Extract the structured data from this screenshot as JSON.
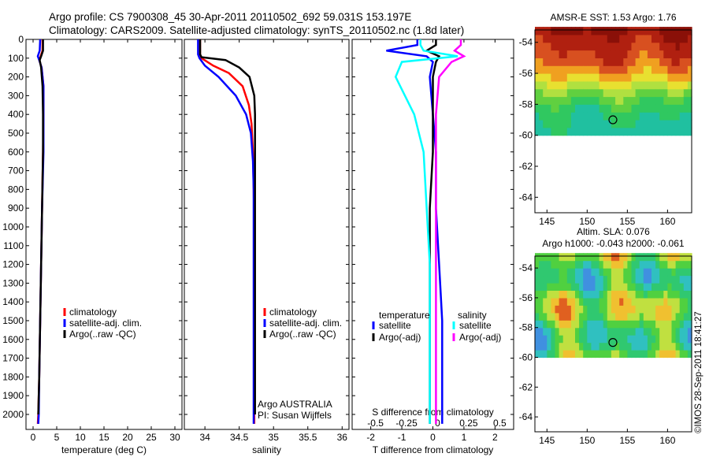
{
  "header": {
    "title_line1": "Argo profile: CS 7900308_45 30-Apr-2011 20110502_692 59.031S 153.197E",
    "title_line2": "Climatology: CARS2009. Satellite-adjusted climatology: synTS_20110502.nc (1.8d later)"
  },
  "credit": "©IMOS 28-Sep-2011 18:41:27",
  "colors": {
    "climatology": "#ff0000",
    "satellite": "#0000ff",
    "argo": "#000000",
    "sat_salinity": "#00ffff",
    "argo_salinity": "#ff00ff"
  },
  "chart_data": [
    {
      "type": "line",
      "name": "temperature-panel",
      "xlabel": "temperature (deg C)",
      "ylabel": "",
      "xlim": [
        -1.5,
        31.5
      ],
      "ylim": [
        2080,
        0
      ],
      "xticks": [
        0,
        5,
        10,
        15,
        20,
        25,
        30
      ],
      "yticks": [
        0,
        100,
        200,
        300,
        400,
        500,
        600,
        700,
        800,
        900,
        1000,
        1100,
        1200,
        1300,
        1400,
        1500,
        1600,
        1700,
        1800,
        1900,
        2000
      ],
      "legend": [
        "climatology",
        "satellite-adj. clim.",
        "Argo(..raw -QC)"
      ],
      "legend_position": "lower-right",
      "series": [
        {
          "name": "climatology",
          "color": "#ff0000",
          "x": [
            2.0,
            2.0,
            1.6,
            1.3,
            1.8,
            2.2,
            2.2,
            2.1,
            1.9,
            1.7,
            1.5,
            1.3,
            1.1,
            1.0
          ],
          "y": [
            0,
            60,
            90,
            110,
            150,
            250,
            400,
            600,
            900,
            1200,
            1500,
            1800,
            2000,
            2050
          ]
        },
        {
          "name": "satellite-adj. clim.",
          "color": "#0000ff",
          "x": [
            1.5,
            1.4,
            1.0,
            1.3,
            1.8,
            2.2,
            2.2,
            2.2,
            1.9,
            1.7,
            1.5,
            1.3,
            1.2,
            1.1
          ],
          "y": [
            0,
            60,
            90,
            110,
            150,
            250,
            400,
            600,
            900,
            1200,
            1500,
            1800,
            2000,
            2050
          ]
        },
        {
          "name": "Argo(..raw -QC)",
          "color": "#000000",
          "x": [
            2.1,
            2.1,
            1.7,
            1.4,
            1.7,
            2.0,
            2.1,
            2.1,
            1.9,
            1.7,
            1.5,
            1.3,
            1.1
          ],
          "y": [
            0,
            60,
            90,
            110,
            150,
            250,
            400,
            600,
            900,
            1200,
            1500,
            1800,
            2000
          ]
        }
      ]
    },
    {
      "type": "line",
      "name": "salinity-panel",
      "xlabel": "salinity",
      "xlim": [
        33.7,
        36.1
      ],
      "ylim": [
        2080,
        0
      ],
      "xticks": [
        34,
        34.5,
        35,
        35.5,
        36
      ],
      "legend": [
        "climatology",
        "satellite-adj. clim.",
        "Argo(..raw -QC)"
      ],
      "legend_position": "lower-right",
      "annotation": [
        "Argo AUSTRALIA",
        "PI: Susan Wijffels"
      ],
      "series": [
        {
          "name": "climatology",
          "color": "#ff0000",
          "x": [
            33.93,
            33.93,
            33.95,
            34.12,
            34.35,
            34.55,
            34.64,
            34.68,
            34.7,
            34.71,
            34.72,
            34.72,
            34.72,
            34.72,
            34.72
          ],
          "y": [
            0,
            80,
            100,
            140,
            180,
            250,
            350,
            450,
            600,
            800,
            1000,
            1300,
            1600,
            1900,
            2050
          ]
        },
        {
          "name": "satellite-adj. clim.",
          "color": "#0000ff",
          "x": [
            33.9,
            33.9,
            33.92,
            34.0,
            34.2,
            34.45,
            34.6,
            34.67,
            34.7,
            34.71,
            34.71,
            34.71,
            34.71,
            34.71,
            34.71
          ],
          "y": [
            0,
            80,
            100,
            140,
            200,
            300,
            400,
            500,
            650,
            800,
            1000,
            1300,
            1600,
            1900,
            2050
          ]
        },
        {
          "name": "Argo(..raw -QC)",
          "color": "#000000",
          "x": [
            33.93,
            33.93,
            33.95,
            34.3,
            34.5,
            34.65,
            34.72,
            34.73,
            34.73,
            34.73,
            34.73,
            34.73,
            34.73,
            34.73
          ],
          "y": [
            0,
            80,
            95,
            110,
            150,
            200,
            300,
            400,
            600,
            800,
            1100,
            1400,
            1700,
            2000
          ]
        }
      ]
    },
    {
      "type": "line",
      "name": "difference-panel",
      "xlabel": "T difference from climatology",
      "xlabel_top": "S difference from climatology",
      "xlim": [
        -2.6,
        2.6
      ],
      "ylim": [
        2080,
        0
      ],
      "xticks_T": [
        -2,
        -1,
        0,
        1,
        2
      ],
      "xticks_S": [
        "-0.5",
        "-0.25",
        "0",
        "0.25",
        "0.5"
      ],
      "xticks_S_pos": [
        -2,
        -1,
        0,
        1,
        2
      ],
      "legend_titles": [
        "temperature",
        "salinity"
      ],
      "legend": [
        "satellite",
        "Argo(-adj)",
        "satellite",
        "Argo(-adj)"
      ],
      "legend_position": "lower-center",
      "series": [
        {
          "name": "temperature satellite",
          "color": "#0000ff",
          "x": [
            -0.5,
            -0.5,
            -1.5,
            -0.2,
            0.0,
            -0.1,
            0.0,
            0.1,
            0.1,
            0.2,
            0.3,
            0.3,
            0.3,
            0.3
          ],
          "y": [
            0,
            30,
            60,
            90,
            120,
            200,
            400,
            600,
            900,
            1200,
            1500,
            1800,
            2000,
            2050
          ]
        },
        {
          "name": "temperature Argo(-adj)",
          "color": "#000000",
          "x": [
            0.1,
            0.1,
            -0.2,
            0.2,
            0.1,
            0.0,
            0.0,
            0.0,
            -0.1,
            -0.1,
            -0.1,
            -0.1,
            -0.1,
            -0.1
          ],
          "y": [
            0,
            30,
            60,
            90,
            120,
            200,
            400,
            600,
            900,
            1200,
            1500,
            1800,
            2000,
            2050
          ]
        },
        {
          "name": "salinity satellite",
          "color": "#00ffff",
          "x": [
            -0.4,
            -0.4,
            -0.3,
            0.8,
            -1.0,
            -1.2,
            -0.6,
            -0.3,
            -0.2,
            -0.1,
            -0.1,
            -0.1,
            -0.1,
            -0.1
          ],
          "y": [
            0,
            30,
            60,
            90,
            120,
            200,
            400,
            600,
            900,
            1200,
            1500,
            1800,
            2000,
            2050
          ]
        },
        {
          "name": "salinity Argo(-adj)",
          "color": "#ff00ff",
          "x": [
            0.9,
            0.9,
            0.7,
            1.0,
            0.6,
            0.2,
            0.1,
            0.1,
            0.1,
            0.1,
            0.1,
            0.1,
            0.1,
            0.1
          ],
          "y": [
            0,
            30,
            60,
            90,
            120,
            200,
            400,
            600,
            900,
            1200,
            1500,
            1800,
            2000,
            2050
          ]
        }
      ]
    },
    {
      "type": "heatmap",
      "name": "sst-map",
      "title": "AMSR-E SST: 1.53 Argo: 1.76",
      "xlim": [
        143.5,
        163
      ],
      "ylim": [
        -65,
        -53.2
      ],
      "xticks": [
        145,
        150,
        155,
        160
      ],
      "yticks": [
        -54,
        -56,
        -58,
        -60,
        -62,
        -64
      ],
      "data_lat_range": [
        -60,
        -53.2
      ],
      "colormap": [
        "#20c0a0",
        "#30c860",
        "#60d040",
        "#b0e040",
        "#e8e030",
        "#f0a020",
        "#d85020",
        "#b02010",
        "#8a1008"
      ],
      "marker": {
        "lon": 153.2,
        "lat": -59.0
      }
    },
    {
      "type": "heatmap",
      "name": "sla-map",
      "title": "Altim. SLA: 0.076",
      "subtitle": "Argo h1000: -0.043 h2000: -0.061",
      "xlim": [
        143.5,
        163
      ],
      "ylim": [
        -65,
        -53.2
      ],
      "xticks": [
        145,
        150,
        155,
        160
      ],
      "yticks": [
        -54,
        -56,
        -58,
        -60,
        -62,
        -64
      ],
      "data_lat_range": [
        -60,
        -53.2
      ],
      "colormap": [
        "#4090e0",
        "#30c0c0",
        "#30c870",
        "#50d040",
        "#c0e040",
        "#f0c030",
        "#e06020"
      ],
      "marker": {
        "lon": 153.2,
        "lat": -59.0
      }
    }
  ]
}
